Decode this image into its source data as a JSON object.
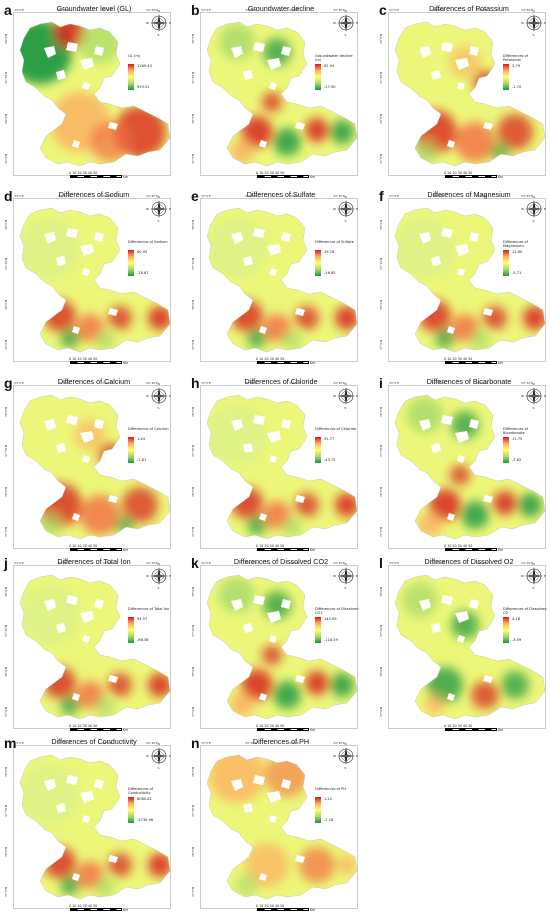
{
  "grid_ticks": {
    "top": [
      "33°0'E",
      "33°30'E",
      "34°0'E",
      "34°30'E"
    ],
    "left": [
      "38°0'N",
      "37°30'N",
      "38°0'N",
      "37°0'N"
    ]
  },
  "legend_colors": [
    "#d7191c",
    "#fdae61",
    "#ffff66",
    "#a6d96a",
    "#1a9641"
  ],
  "scale": {
    "numbers": "0  10  20  30  40  50",
    "unit": "Km"
  },
  "compass": {
    "n": "N",
    "s": "S",
    "e": "E",
    "w": "W"
  },
  "panels": [
    {
      "letter": "a",
      "title": "Groundwater level (GL)",
      "legend_title": "GL (m)",
      "max": "1169.43",
      "min": "929.51",
      "scheme": "gl"
    },
    {
      "letter": "b",
      "title": "Groundwater decline",
      "legend_title": "Groundwater decline (m)",
      "max": "62.94",
      "min": "-27.90",
      "scheme": "mix"
    },
    {
      "letter": "c",
      "title": "Differences of Potassium",
      "legend_title": "Differences of Potassium",
      "max": "3.79",
      "min": "-1.70",
      "scheme": "hot"
    },
    {
      "letter": "d",
      "title": "Differences of Sodium",
      "legend_title": "Differences of Sodium",
      "max": "60.95",
      "min": "-28.67",
      "scheme": "south"
    },
    {
      "letter": "e",
      "title": "Differences of Sulfate",
      "legend_title": "Differences of Sulfate",
      "max": "19.18",
      "min": "-16.85",
      "scheme": "south"
    },
    {
      "letter": "f",
      "title": "Differences of Magnesium",
      "legend_title": "Differences of Magnesium",
      "max": "12.60",
      "min": "-5.71",
      "scheme": "south"
    },
    {
      "letter": "g",
      "title": "Differences of Calcium",
      "legend_title": "Differences of Calcium",
      "max": "1.44",
      "min": "-1.61",
      "scheme": "hot"
    },
    {
      "letter": "h",
      "title": "Differences of Chloride",
      "legend_title": "Differences of Chloride",
      "max": "51.77",
      "min": "-43.75",
      "scheme": "south"
    },
    {
      "letter": "i",
      "title": "Differences of Bicarbonate",
      "legend_title": "Differences of Bicarbonate",
      "max": "11.75",
      "min": "-7.62",
      "scheme": "mix"
    },
    {
      "letter": "j",
      "title": "Differences of Total Ion",
      "legend_title": "Differences of Total Ion",
      "max": "94.57",
      "min": "-66.36",
      "scheme": "south"
    },
    {
      "letter": "k",
      "title": "Differences of Dissolved CO2",
      "legend_title": "Differences of Dissolved CO2",
      "max": "140.09",
      "min": "-116.59",
      "scheme": "mix"
    },
    {
      "letter": "l",
      "title": "Differences of Dissolved O2",
      "legend_title": "Differences of Dissolved O2",
      "max": "4.18",
      "min": "-3.59",
      "scheme": "green"
    },
    {
      "letter": "m",
      "title": "Differences of Conductivity",
      "legend_title": "Differences of Conductivity",
      "max": "8060.81",
      "min": "-5730.96",
      "scheme": "south"
    },
    {
      "letter": "n",
      "title": "Differences of PH",
      "legend_title": "Differences of PH",
      "max": "1.22",
      "min": "-2.16",
      "scheme": "orange"
    }
  ]
}
